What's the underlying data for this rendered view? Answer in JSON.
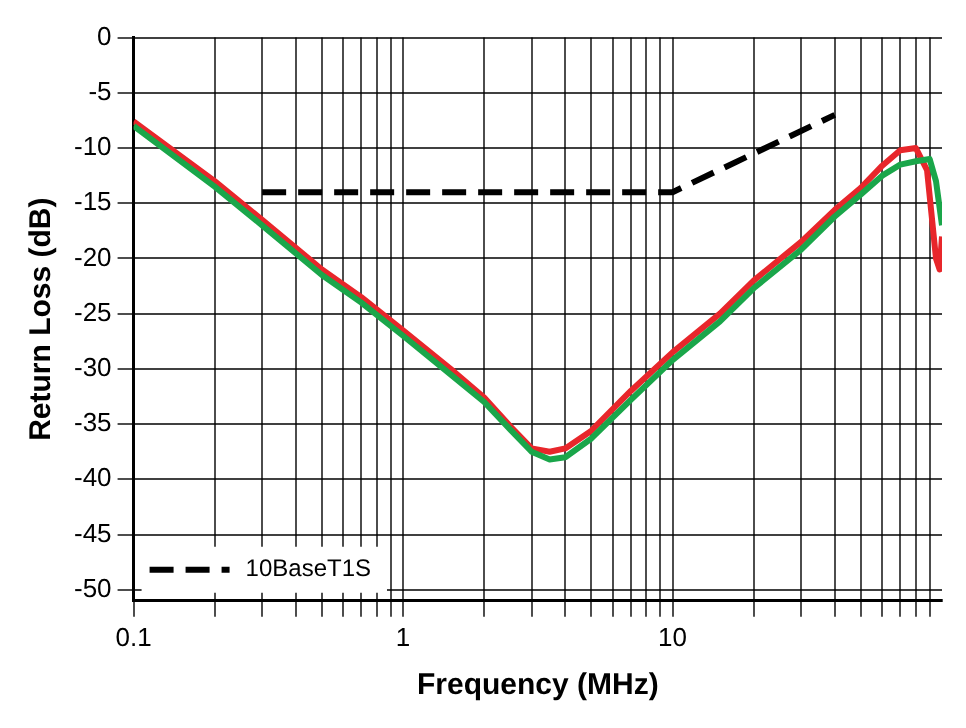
{
  "chart_data": {
    "type": "line",
    "xlabel": "Frequency (MHz)",
    "ylabel": "Return Loss (dB)",
    "log": "x",
    "grid": true,
    "legend": "bottom left",
    "marker": "none",
    "xlim": [
      0.1,
      100
    ],
    "ylim": [
      -51,
      0
    ],
    "xticks": [
      0.1,
      {
        "value": 0.2,
        "label": null
      },
      {
        "value": 0.3,
        "label": null
      },
      {
        "value": 0.4,
        "label": null
      },
      {
        "value": 0.5,
        "label": null
      },
      {
        "value": 0.6,
        "label": null
      },
      {
        "value": 0.7,
        "label": null
      },
      {
        "value": 0.8,
        "label": null
      },
      {
        "value": 0.9,
        "label": null
      },
      1,
      {
        "value": 2,
        "label": null
      },
      {
        "value": 3,
        "label": null
      },
      {
        "value": 4,
        "label": null
      },
      {
        "value": 5,
        "label": null
      },
      {
        "value": 6,
        "label": null
      },
      {
        "value": 7,
        "label": null
      },
      {
        "value": 8,
        "label": null
      },
      {
        "value": 9,
        "label": null
      },
      10,
      {
        "value": 20,
        "label": null
      },
      {
        "value": 30,
        "label": null
      },
      {
        "value": 40,
        "label": null
      },
      {
        "value": 50,
        "label": null
      },
      {
        "value": 60,
        "label": null
      },
      {
        "value": 70,
        "label": null
      },
      {
        "value": 80,
        "label": null
      },
      {
        "value": 90,
        "label": null
      }
    ],
    "yticks": [
      0,
      -5,
      -10,
      -15,
      -20,
      -25,
      -30,
      -35,
      -40,
      -45,
      -50
    ],
    "series": [
      {
        "name": "10BaseT1S",
        "color": "#000000",
        "line_style": "dashed",
        "x": [
          0.3,
          10,
          40
        ],
        "values": [
          -14,
          -14,
          -7
        ]
      },
      {
        "color": "#e8262b",
        "line_style": "solid",
        "x": [
          0.1,
          0.2,
          0.3,
          0.5,
          0.7,
          1,
          1.5,
          2,
          2.5,
          3,
          3.5,
          4,
          5,
          7,
          10,
          15,
          20,
          30,
          40,
          50,
          60,
          70,
          80,
          88,
          95,
          98,
          100
        ],
        "values": [
          -7.6,
          -13,
          -16.5,
          -21,
          -23.5,
          -26.5,
          -30,
          -32.6,
          -35.2,
          -37.2,
          -37.5,
          -37.2,
          -35.6,
          -32,
          -28.5,
          -25,
          -22,
          -18.5,
          -15.6,
          -13.6,
          -11.6,
          -10.2,
          -10,
          -12,
          -20,
          -21,
          -18
        ]
      },
      {
        "color": "#1aa64a",
        "line_style": "solid",
        "x": [
          0.1,
          0.2,
          0.3,
          0.5,
          0.7,
          1,
          1.5,
          2,
          2.5,
          3,
          3.5,
          4,
          5,
          7,
          10,
          15,
          20,
          30,
          40,
          50,
          60,
          70,
          80,
          90,
          95,
          100
        ],
        "values": [
          -8,
          -13.5,
          -17,
          -21.5,
          -24,
          -27,
          -30.5,
          -33,
          -35.5,
          -37.5,
          -38.2,
          -38,
          -36.3,
          -32.8,
          -29.2,
          -25.7,
          -22.7,
          -19.2,
          -16.2,
          -14.2,
          -12.5,
          -11.5,
          -11.2,
          -11,
          -13,
          -17
        ]
      }
    ]
  }
}
